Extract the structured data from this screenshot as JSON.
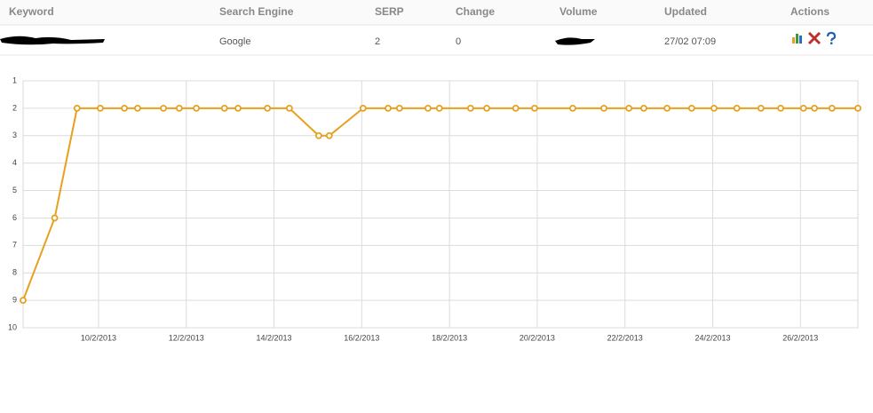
{
  "table": {
    "headers": [
      "Keyword",
      "Search Engine",
      "SERP",
      "Change",
      "Volume",
      "Updated",
      "Actions"
    ],
    "rows": [
      [
        "Google",
        2,
        0,
        "27/02 07:09"
      ]
    ]
  },
  "chart_data": {
    "type": "line",
    "color": "#e8a020",
    "invert_y": true,
    "grid": true,
    "xlim": [
      8.28,
      27.31
    ],
    "xticks": [
      {
        "value": 10,
        "label": "10/2/2013"
      },
      {
        "value": 12,
        "label": "12/2/2013"
      },
      {
        "value": 14,
        "label": "14/2/2013"
      },
      {
        "value": 16,
        "label": "16/2/2013"
      },
      {
        "value": 18,
        "label": "18/2/2013"
      },
      {
        "value": 20,
        "label": "20/2/2013"
      },
      {
        "value": 22,
        "label": "22/2/2013"
      },
      {
        "value": 24,
        "label": "24/2/2013"
      },
      {
        "value": 26,
        "label": "26/2/2013"
      }
    ],
    "ylim": [
      1,
      10
    ],
    "yticks": [
      1,
      2,
      3,
      4,
      5,
      6,
      7,
      8,
      9,
      10
    ],
    "x": [
      8.28,
      9.0,
      9.51,
      10.04,
      10.59,
      10.89,
      11.48,
      11.84,
      12.23,
      12.87,
      13.18,
      13.85,
      14.35,
      15.02,
      15.26,
      16.03,
      16.6,
      16.86,
      17.51,
      17.77,
      18.48,
      18.85,
      19.51,
      19.94,
      20.81,
      21.52,
      22.09,
      22.43,
      22.96,
      23.52,
      24.03,
      24.55,
      25.1,
      25.55,
      26.07,
      26.32,
      26.72,
      27.31
    ],
    "values": [
      9,
      6,
      2,
      2,
      2,
      2,
      2,
      2,
      2,
      2,
      2,
      2,
      2,
      3,
      3,
      2,
      2,
      2,
      2,
      2,
      2,
      2,
      2,
      2,
      2,
      2,
      2,
      2,
      2,
      2,
      2,
      2,
      2,
      2,
      2,
      2,
      2,
      2
    ]
  }
}
